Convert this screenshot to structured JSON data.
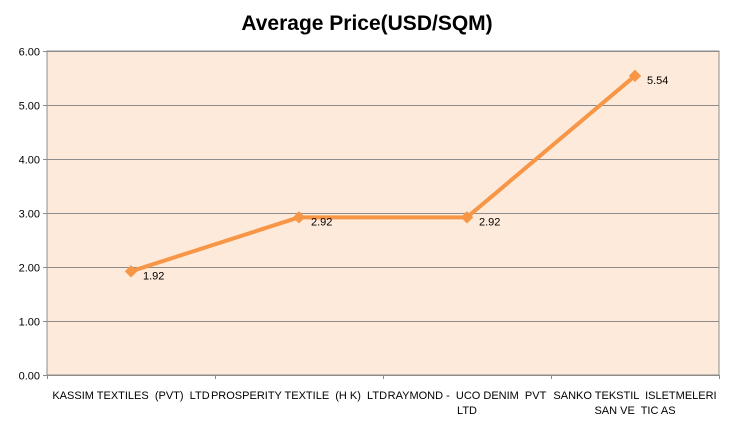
{
  "chart_data": {
    "type": "line",
    "title": "Average Price(USD/SQM)",
    "xlabel": "",
    "ylabel": "",
    "categories": [
      [
        "KASSIM TEXTILES  (PVT)  LTD"
      ],
      [
        "PROSPERITY TEXTILE  (H K)  LTD"
      ],
      [
        "RAYMOND -  UCO DENIM  PVT",
        "LTD"
      ],
      [
        "SANKO TEKSTIL  ISLETMELERI",
        "SAN VE  TIC AS"
      ]
    ],
    "series": [
      {
        "values": [
          1.92,
          2.92,
          2.92,
          5.54
        ],
        "color": "#f79646",
        "marker": "diamond"
      }
    ],
    "data_labels": [
      "1.92",
      "2.92",
      "2.92",
      "5.54"
    ],
    "ylim": [
      0,
      6
    ],
    "yticks": [
      "0.00",
      "1.00",
      "2.00",
      "3.00",
      "4.00",
      "5.00",
      "6.00"
    ],
    "grid": true,
    "legend": "none",
    "plot_background": "#fdeada",
    "gridline_color": "#8c8c8c"
  }
}
